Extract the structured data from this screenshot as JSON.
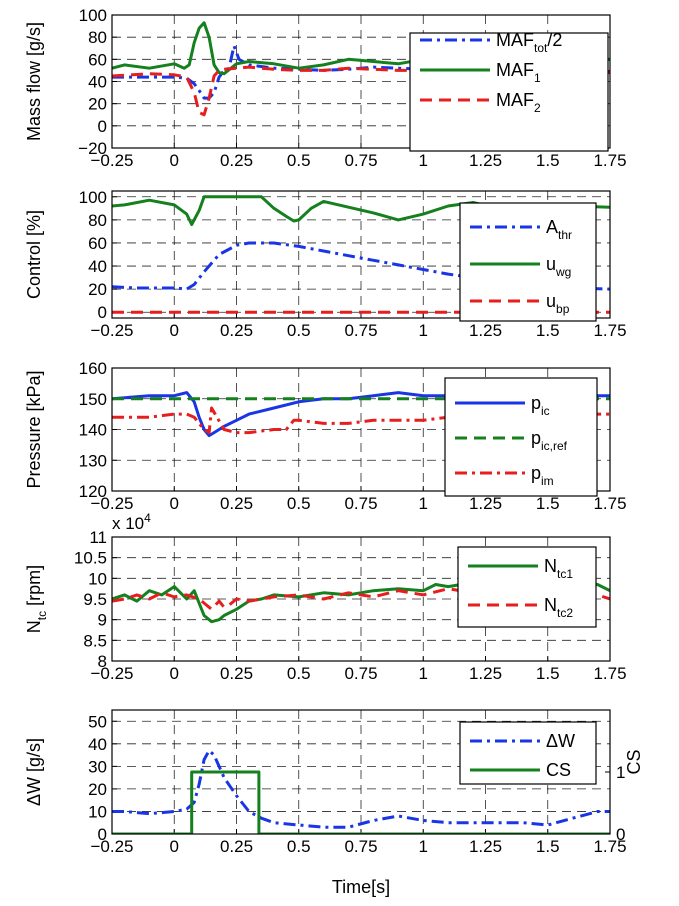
{
  "chart_data": [
    {
      "type": "line",
      "ylabel": "Mass  flow [g/s]",
      "xlim": [
        -0.25,
        1.75
      ],
      "ylim": [
        -20,
        100
      ],
      "xticks": [
        "-0.25",
        "0",
        "0.25",
        "0.5",
        "0.75",
        "1",
        "1.25",
        "1.5",
        "1.75"
      ],
      "yticks": [
        "100",
        "80",
        "60",
        "40",
        "20",
        "0",
        "-20"
      ],
      "grid": true,
      "legend_position": "right",
      "series": [
        {
          "name": "MAF_tot/2",
          "color": "#1a35e6",
          "dash": "dashdot",
          "x": [
            -0.25,
            -0.1,
            0.0,
            0.05,
            0.08,
            0.1,
            0.12,
            0.14,
            0.16,
            0.18,
            0.2,
            0.22,
            0.23,
            0.24,
            0.26,
            0.3,
            0.4,
            0.5,
            0.6,
            0.7,
            0.8,
            0.9,
            1.0,
            1.1,
            1.2,
            1.3,
            1.4,
            1.5,
            1.6,
            1.75
          ],
          "y": [
            44,
            44,
            44,
            43,
            38,
            32,
            25,
            25,
            30,
            44,
            50,
            52,
            62,
            72,
            60,
            55,
            52,
            51,
            50,
            51,
            53,
            52,
            51,
            52,
            53,
            52,
            51,
            50,
            50,
            49
          ]
        },
        {
          "name": "MAF_1",
          "color": "#14801e",
          "dash": "solid",
          "x": [
            -0.25,
            -0.2,
            -0.1,
            0.0,
            0.04,
            0.06,
            0.08,
            0.1,
            0.12,
            0.14,
            0.16,
            0.18,
            0.2,
            0.25,
            0.3,
            0.4,
            0.5,
            0.6,
            0.7,
            0.8,
            0.9,
            1.0,
            1.1,
            1.2,
            1.3,
            1.4,
            1.5,
            1.6,
            1.75
          ],
          "y": [
            52,
            55,
            52,
            56,
            52,
            55,
            75,
            88,
            93,
            80,
            55,
            48,
            47,
            56,
            58,
            56,
            52,
            55,
            60,
            58,
            56,
            60,
            58,
            61,
            58,
            56,
            55,
            57,
            60
          ]
        },
        {
          "name": "MAF_2",
          "color": "#e61e1e",
          "dash": "dashed",
          "x": [
            -0.25,
            -0.1,
            0.0,
            0.05,
            0.08,
            0.1,
            0.12,
            0.14,
            0.16,
            0.18,
            0.2,
            0.25,
            0.3,
            0.4,
            0.5,
            0.6,
            0.7,
            0.8,
            0.9,
            1.0,
            1.1,
            1.2,
            1.3,
            1.4,
            1.5,
            1.6,
            1.75
          ],
          "y": [
            45,
            47,
            46,
            44,
            30,
            12,
            10,
            25,
            45,
            50,
            51,
            52,
            53,
            51,
            50,
            50,
            52,
            51,
            50,
            50,
            51,
            52,
            50,
            51,
            49,
            48,
            48
          ]
        }
      ]
    },
    {
      "type": "line",
      "ylabel": "Control [%]",
      "xlim": [
        -0.25,
        1.75
      ],
      "ylim": [
        -5,
        105
      ],
      "xticks": [
        "-0.25",
        "0",
        "0.25",
        "0.5",
        "0.75",
        "1",
        "1.25",
        "1.5",
        "1.75"
      ],
      "yticks": [
        "100",
        "80",
        "60",
        "40",
        "20",
        "0"
      ],
      "grid": true,
      "legend_position": "right",
      "series": [
        {
          "name": "A_thr",
          "color": "#1a35e6",
          "dash": "dashdot",
          "x": [
            -0.25,
            -0.15,
            0.0,
            0.05,
            0.08,
            0.12,
            0.18,
            0.25,
            0.3,
            0.4,
            0.5,
            0.6,
            0.7,
            0.8,
            0.9,
            1.0,
            1.1,
            1.2,
            1.3,
            1.4,
            1.5,
            1.6,
            1.75
          ],
          "y": [
            22,
            21,
            21,
            20,
            24,
            35,
            50,
            58,
            60,
            60,
            57,
            53,
            49,
            45,
            41,
            37,
            33,
            30,
            27,
            25,
            23,
            21,
            20
          ]
        },
        {
          "name": "u_wg",
          "color": "#14801e",
          "dash": "solid",
          "x": [
            -0.25,
            -0.2,
            -0.1,
            0.0,
            0.05,
            0.07,
            0.1,
            0.12,
            0.2,
            0.3,
            0.35,
            0.4,
            0.45,
            0.48,
            0.5,
            0.55,
            0.6,
            0.7,
            0.8,
            0.9,
            1.0,
            1.1,
            1.2,
            1.3,
            1.4,
            1.5,
            1.6,
            1.75
          ],
          "y": [
            92,
            93,
            97,
            93,
            85,
            76,
            88,
            100,
            100,
            100,
            100,
            90,
            83,
            79,
            80,
            90,
            96,
            91,
            86,
            80,
            85,
            92,
            95,
            90,
            93,
            89,
            92,
            91
          ]
        },
        {
          "name": "u_bp",
          "color": "#e61e1e",
          "dash": "dashed",
          "x": [
            -0.25,
            1.75
          ],
          "y": [
            0,
            0
          ]
        }
      ]
    },
    {
      "type": "line",
      "ylabel": "Pressure [kPa]",
      "xlim": [
        -0.25,
        1.75
      ],
      "ylim": [
        120,
        160
      ],
      "xticks": [
        "-0.25",
        "0",
        "0.25",
        "0.5",
        "0.75",
        "1",
        "1.25",
        "1.5",
        "1.75"
      ],
      "yticks": [
        "160",
        "150",
        "140",
        "130",
        "120"
      ],
      "grid": true,
      "legend_position": "right",
      "series": [
        {
          "name": "p_ic",
          "color": "#1a35e6",
          "dash": "solid",
          "x": [
            -0.25,
            -0.1,
            0.0,
            0.05,
            0.08,
            0.1,
            0.12,
            0.14,
            0.16,
            0.2,
            0.25,
            0.3,
            0.4,
            0.5,
            0.6,
            0.7,
            0.8,
            0.9,
            1.0,
            1.1,
            1.2,
            1.3,
            1.4,
            1.5,
            1.6,
            1.75
          ],
          "y": [
            150,
            151,
            151,
            152,
            149,
            144,
            140,
            138,
            139,
            141,
            143,
            145,
            147,
            149,
            150,
            150,
            151,
            152,
            151,
            151,
            150,
            151,
            151,
            150,
            151,
            151
          ]
        },
        {
          "name": "p_ic,ref",
          "color": "#14801e",
          "dash": "dashed",
          "x": [
            -0.25,
            1.75
          ],
          "y": [
            150,
            150
          ]
        },
        {
          "name": "p_im",
          "color": "#e61e1e",
          "dash": "dashdot",
          "x": [
            -0.25,
            -0.1,
            0.0,
            0.05,
            0.08,
            0.1,
            0.12,
            0.14,
            0.15,
            0.2,
            0.25,
            0.3,
            0.4,
            0.45,
            0.48,
            0.5,
            0.6,
            0.7,
            0.8,
            0.9,
            1.0,
            1.1,
            1.2,
            1.3,
            1.4,
            1.5,
            1.6,
            1.75
          ],
          "y": [
            144,
            144,
            145,
            145,
            144,
            142,
            140,
            139,
            147,
            140,
            139,
            139,
            140,
            140,
            143,
            143,
            142,
            142,
            143,
            143,
            143,
            144,
            144,
            144,
            145,
            145,
            145,
            145
          ]
        }
      ]
    },
    {
      "type": "line",
      "ylabel": "N_tc [rpm]",
      "exponent_label": "x 10^4",
      "xlim": [
        -0.25,
        1.75
      ],
      "ylim": [
        8,
        11
      ],
      "xticks": [
        "-0.25",
        "0",
        "0.25",
        "0.5",
        "0.75",
        "1",
        "1.25",
        "1.5",
        "1.75"
      ],
      "yticks": [
        "11",
        "10.5",
        "10",
        "9.5",
        "9",
        "8.5",
        "8"
      ],
      "grid": true,
      "legend_position": "right",
      "series": [
        {
          "name": "N_tc1",
          "color": "#14801e",
          "dash": "solid",
          "x": [
            -0.25,
            -0.2,
            -0.15,
            -0.1,
            -0.05,
            0.0,
            0.05,
            0.08,
            0.1,
            0.12,
            0.15,
            0.18,
            0.2,
            0.25,
            0.3,
            0.35,
            0.4,
            0.5,
            0.6,
            0.7,
            0.8,
            0.9,
            1.0,
            1.05,
            1.1,
            1.2,
            1.3,
            1.4,
            1.5,
            1.6,
            1.7,
            1.75
          ],
          "y": [
            9.5,
            9.6,
            9.45,
            9.7,
            9.6,
            9.8,
            9.5,
            9.7,
            9.4,
            9.1,
            8.95,
            9.0,
            9.1,
            9.25,
            9.45,
            9.5,
            9.6,
            9.55,
            9.65,
            9.6,
            9.7,
            9.75,
            9.7,
            9.85,
            9.8,
            9.9,
            9.85,
            9.95,
            10.0,
            9.9,
            9.85,
            9.7
          ]
        },
        {
          "name": "N_tc2",
          "color": "#e61e1e",
          "dash": "dashed",
          "x": [
            -0.25,
            -0.2,
            -0.15,
            -0.1,
            -0.05,
            0.0,
            0.05,
            0.1,
            0.12,
            0.15,
            0.18,
            0.2,
            0.22,
            0.25,
            0.3,
            0.4,
            0.5,
            0.6,
            0.7,
            0.8,
            0.9,
            1.0,
            1.1,
            1.2,
            1.3,
            1.4,
            1.5,
            1.6,
            1.7,
            1.75
          ],
          "y": [
            9.45,
            9.5,
            9.6,
            9.5,
            9.65,
            9.55,
            9.6,
            9.5,
            9.4,
            9.25,
            9.45,
            9.3,
            9.35,
            9.5,
            9.45,
            9.55,
            9.6,
            9.5,
            9.65,
            9.55,
            9.7,
            9.6,
            9.75,
            9.65,
            9.7,
            9.8,
            9.75,
            9.7,
            9.6,
            9.5
          ]
        }
      ]
    },
    {
      "type": "line",
      "ylabel": "ΔW [g/s]",
      "y2label": "CS",
      "xlabel": "Time[s]",
      "xlim": [
        -0.25,
        1.75
      ],
      "ylim": [
        0,
        55
      ],
      "y2lim": [
        0,
        2
      ],
      "xticks": [
        "-0.25",
        "0",
        "0.25",
        "0.5",
        "0.75",
        "1",
        "1.25",
        "1.5",
        "1.75"
      ],
      "yticks": [
        "50",
        "40",
        "30",
        "20",
        "10",
        "0"
      ],
      "y2ticks": [
        "1",
        "0"
      ],
      "grid": true,
      "legend_position": "top-right",
      "series": [
        {
          "name": "ΔW",
          "color": "#1a35e6",
          "dash": "dashdot",
          "axis": "left",
          "x": [
            -0.25,
            -0.2,
            -0.1,
            0.0,
            0.05,
            0.08,
            0.1,
            0.12,
            0.14,
            0.16,
            0.18,
            0.2,
            0.25,
            0.3,
            0.35,
            0.4,
            0.5,
            0.6,
            0.7,
            0.8,
            0.9,
            1.0,
            1.1,
            1.2,
            1.3,
            1.4,
            1.5,
            1.6,
            1.7,
            1.75
          ],
          "y": [
            10,
            10,
            9,
            10,
            11,
            14,
            22,
            33,
            37,
            35,
            30,
            25,
            17,
            10,
            7,
            5,
            4,
            3,
            3,
            6,
            8,
            6,
            5,
            5,
            5,
            5,
            4,
            7,
            10,
            10
          ]
        },
        {
          "name": "CS",
          "color": "#14801e",
          "dash": "solid",
          "axis": "right",
          "x": [
            -0.25,
            0.07,
            0.07,
            0.34,
            0.34,
            1.75
          ],
          "y": [
            0,
            0,
            1,
            1,
            0,
            0
          ]
        }
      ]
    }
  ]
}
